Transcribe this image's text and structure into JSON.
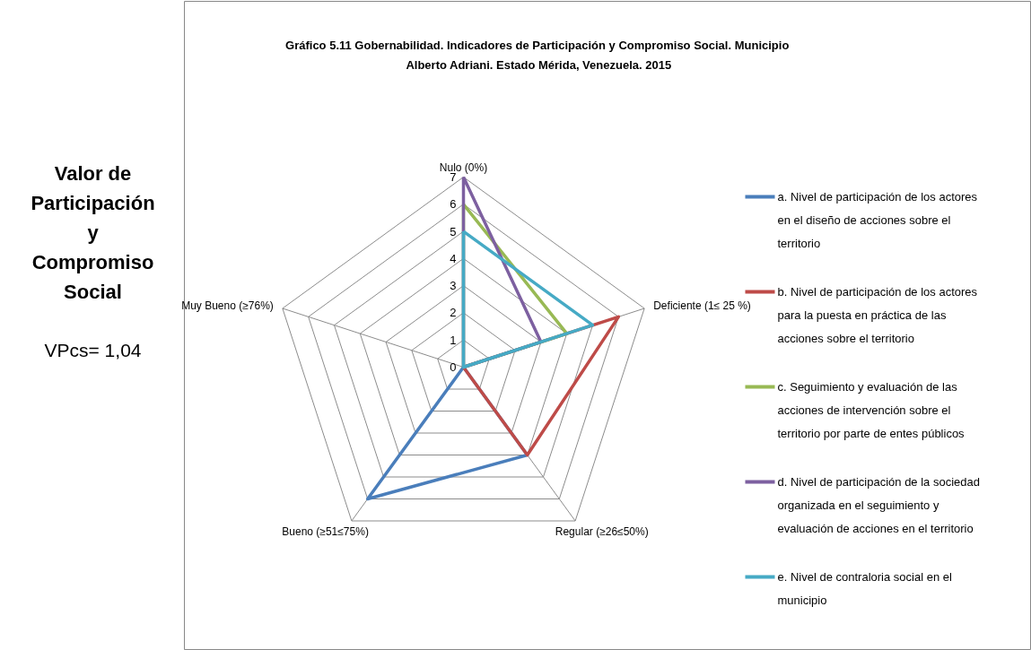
{
  "chart_data": {
    "type": "radar",
    "title": "Gráfico 5.11 Gobernabilidad.  Indicadores de Participación y Compromiso Social. Municipio Alberto Adriani. Estado Mérida, Venezuela. 2015",
    "categories": [
      "Nulo (0%)",
      "Deficiente (1≤ 25 %)",
      "Regular (≥26≤50%)",
      "Bueno  (≥51≤75%)",
      "Muy Bueno (≥76%)"
    ],
    "ylim": [
      0,
      7
    ],
    "yticks": [
      0,
      1,
      2,
      3,
      4,
      5,
      6,
      7
    ],
    "grid": true,
    "legend": "right",
    "series": [
      {
        "name": "a. Nivel de participación de los actores en el diseño de acciones sobre el territorio",
        "color": "#4a7ebb",
        "values": [
          0,
          0,
          4,
          6,
          0
        ]
      },
      {
        "name": "b. Nivel de participación de los actores para la puesta en práctica de las acciones sobre el territorio",
        "color": "#be4b48",
        "values": [
          0,
          6,
          4,
          0,
          0
        ]
      },
      {
        "name": "c. Seguimiento y evaluación de las acciones de intervención sobre el territorio por parte de entes públicos",
        "color": "#98b954",
        "values": [
          6,
          4,
          0,
          0,
          0
        ]
      },
      {
        "name": "d. Nivel de participación de la sociedad organizada en el seguimiento y evaluación de acciones en el territorio",
        "color": "#7d60a0",
        "values": [
          7,
          3,
          0,
          0,
          0
        ]
      },
      {
        "name": "e. Nivel de contraloria social en el municipio",
        "color": "#46aac5",
        "values": [
          5,
          5,
          0,
          0,
          0
        ]
      }
    ],
    "annotations": [
      "Valor de Participación y Compromiso Social",
      "VPcs= 1,04"
    ]
  }
}
